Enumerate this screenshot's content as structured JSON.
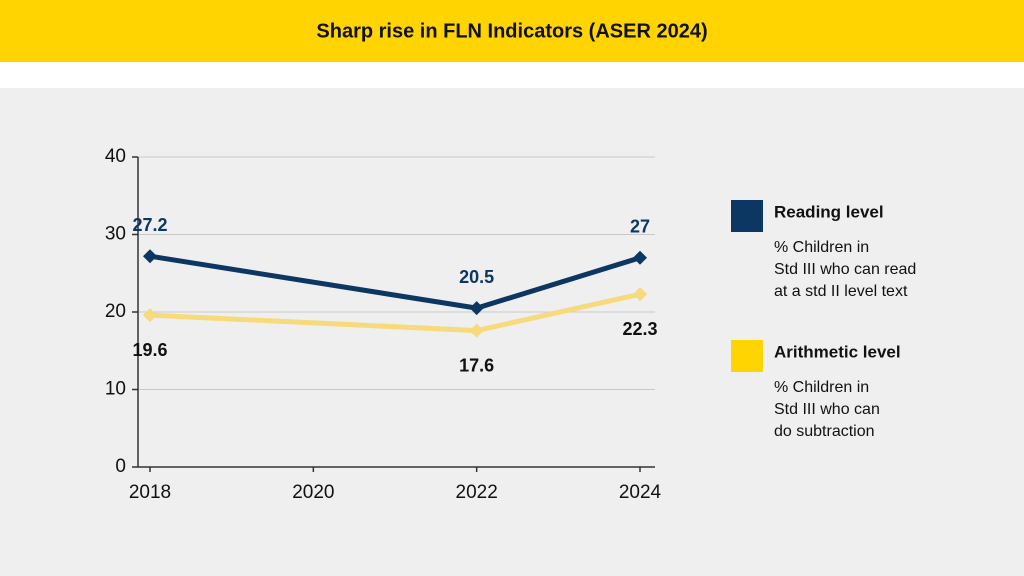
{
  "chart_data": {
    "type": "line",
    "title": "Sharp rise in FLN Indicators (ASER 2024)",
    "x": [
      2018,
      2022,
      2024
    ],
    "series": [
      {
        "name": "Reading level",
        "color": "#0c3763",
        "label_color": "#0c3763",
        "label_position": "above",
        "description": [
          "% Children in",
          "Std III who can read",
          "at a std II level text"
        ],
        "values": [
          27.2,
          20.5,
          27
        ]
      },
      {
        "name": "Arithmetic level",
        "color": "#f6da7c",
        "label_color": "#111111",
        "label_position": "below",
        "description": [
          "% Children in",
          "Std III who can",
          "do subtraction"
        ],
        "values": [
          19.6,
          17.6,
          22.3
        ]
      }
    ],
    "xlim": [
      2018,
      2024
    ],
    "xticks": [
      2018,
      2020,
      2022,
      2024
    ],
    "ylim": [
      0,
      40
    ],
    "yticks": [
      0,
      10,
      20,
      30,
      40
    ],
    "grid": true,
    "legend": "right"
  }
}
